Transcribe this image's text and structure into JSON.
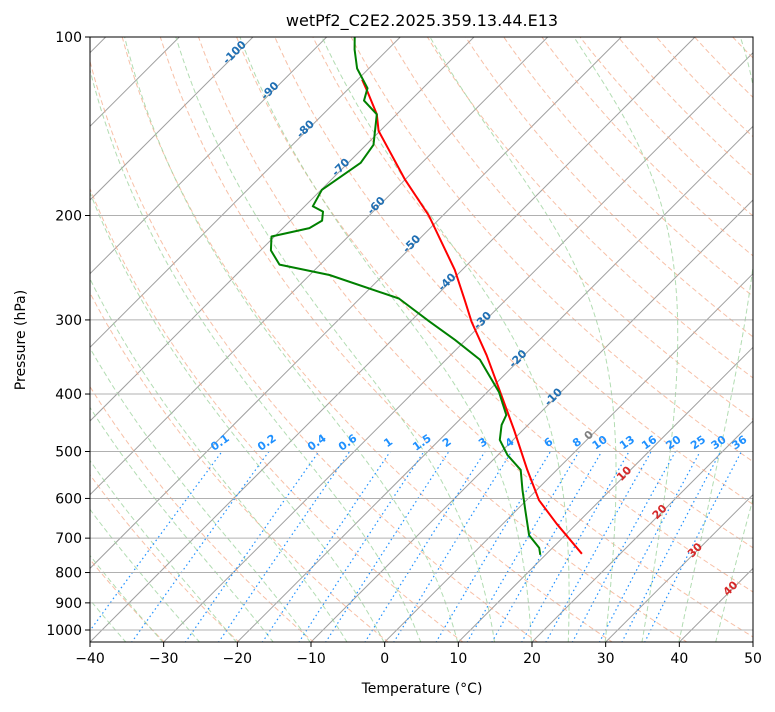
{
  "chart_data": {
    "type": "line",
    "subtype": "skew-t log-p",
    "title": "wetPf2_C2E2.2025.359.13.44.E13",
    "xlabel": "Temperature (°C)",
    "ylabel": "Pressure (hPa)",
    "xlim": [
      -40,
      50
    ],
    "ylim": [
      1050,
      100
    ],
    "x_ticks": [
      "−40",
      "−30",
      "−20",
      "−10",
      "0",
      "10",
      "20",
      "30",
      "40",
      "50"
    ],
    "x_tick_values": [
      -40,
      -30,
      -20,
      -10,
      0,
      10,
      20,
      30,
      40,
      50
    ],
    "y_ticks": [
      "100",
      "200",
      "300",
      "400",
      "500",
      "600",
      "700",
      "800",
      "900",
      "1000"
    ],
    "y_tick_values": [
      100,
      200,
      300,
      400,
      500,
      600,
      700,
      800,
      900,
      1000
    ],
    "grid": true,
    "series": [
      {
        "name": "Temperature",
        "color": "#ff0000",
        "p": [
          744,
          662,
          604,
          537,
          460,
          394,
          344,
          302,
          278,
          247,
          200,
          174,
          144,
          135,
          123,
          118
        ],
        "t": [
          14.8,
          7.3,
          1.7,
          -4.0,
          -11.2,
          -18.6,
          -25.1,
          -31.7,
          -35.5,
          -41.0,
          -51.9,
          -60.0,
          -70.2,
          -72.7,
          -77.3,
          -79.4
        ]
      },
      {
        "name": "Dewpoint",
        "color": "#008000",
        "p": [
          747,
          727,
          692,
          628,
          581,
          537,
          507,
          478,
          451,
          434,
          397,
          350,
          324,
          302,
          276,
          252,
          242,
          229,
          217,
          210,
          204,
          197,
          193,
          181,
          163,
          152,
          135,
          128,
          122,
          113,
          105,
          100
        ],
        "t": [
          9.3,
          8.2,
          5.1,
          1.2,
          -1.9,
          -4.9,
          -8.7,
          -11.8,
          -13.6,
          -14.3,
          -18.4,
          -25.4,
          -31.5,
          -37.4,
          -44.7,
          -57.3,
          -65.5,
          -68.6,
          -70.4,
          -66.4,
          -65.7,
          -66.8,
          -68.9,
          -69.9,
          -68.3,
          -69.0,
          -72.7,
          -76.3,
          -77.5,
          -81.6,
          -84.5,
          -86.2
        ]
      }
    ],
    "isotherm_labels": {
      "values": [
        -100,
        -90,
        -80,
        -70,
        -60,
        -50,
        -40,
        -30,
        -20,
        -10,
        0,
        10,
        20,
        30,
        40
      ],
      "text": [
        "-100",
        "-90",
        "-80",
        "-70",
        "-60",
        "-50",
        "-40",
        "-30",
        "-20",
        "-10",
        "0",
        "10",
        "20",
        "30",
        "40"
      ]
    },
    "mixing_ratio_lines": {
      "values": [
        0.1,
        0.2,
        0.4,
        0.6,
        1,
        1.5,
        2,
        3,
        4,
        6,
        8,
        10,
        13,
        16,
        20,
        25,
        30,
        36
      ],
      "text": [
        "0.1",
        "0.2",
        "0.4",
        "0.6",
        "1",
        "1.5",
        "2",
        "3",
        "4",
        "6",
        "8",
        "10",
        "13",
        "16",
        "20",
        "25",
        "30",
        "36"
      ],
      "top_pressure": 500
    },
    "colors": {
      "isotherm": "#a0a0a0",
      "dry_adiabat": "#f4a582",
      "moist_adiabat": "#9fd39f",
      "mixing_ratio": "#1e90ff",
      "label_cold": "#1f6fb4",
      "label_zero": "#808080",
      "label_warm": "#d62728"
    }
  }
}
